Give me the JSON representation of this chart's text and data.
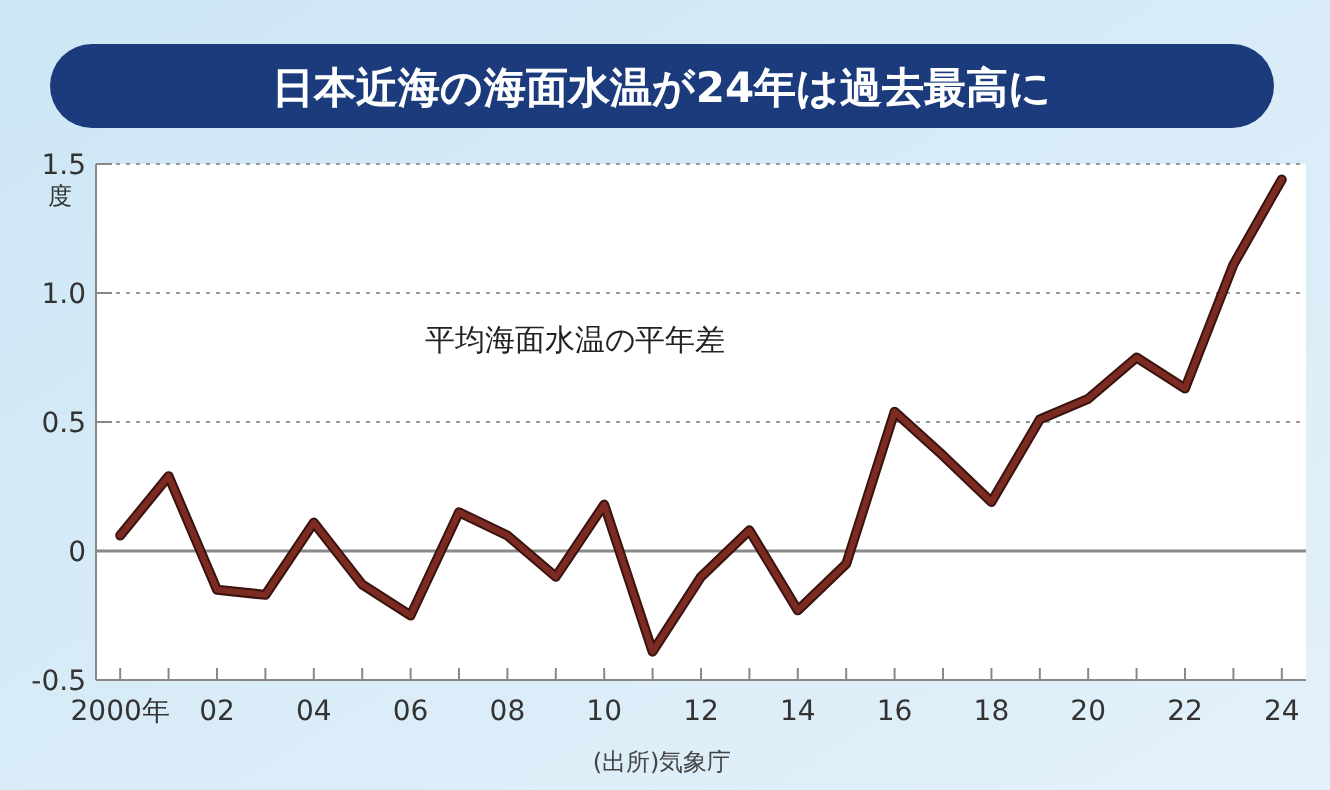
{
  "chart_data": {
    "type": "line",
    "title": "日本近海の海面水温が24年は過去最高に",
    "ylabel": "度",
    "annotations": [
      "(出所)気象庁"
    ],
    "x": [
      2000,
      2001,
      2002,
      2003,
      2004,
      2005,
      2006,
      2007,
      2008,
      2009,
      2010,
      2011,
      2012,
      2013,
      2014,
      2015,
      2016,
      2017,
      2018,
      2019,
      2020,
      2021,
      2022,
      2023,
      2024
    ],
    "series": [
      {
        "name": "平均海面水温の平年差",
        "color": "#7b2b22",
        "values": [
          0.06,
          0.29,
          -0.15,
          -0.17,
          0.11,
          -0.13,
          -0.25,
          0.15,
          0.06,
          -0.1,
          0.18,
          -0.39,
          -0.1,
          0.08,
          -0.23,
          -0.05,
          0.54,
          0.37,
          0.19,
          0.51,
          0.59,
          0.75,
          0.63,
          1.11,
          1.44
        ]
      }
    ],
    "xlim": [
      1999.5,
      2024.5
    ],
    "xticks": [
      {
        "value": 2000,
        "label": "2000年"
      },
      {
        "value": 2001,
        "label": null
      },
      {
        "value": 2002,
        "label": "02"
      },
      {
        "value": 2003,
        "label": null
      },
      {
        "value": 2004,
        "label": "04"
      },
      {
        "value": 2005,
        "label": null
      },
      {
        "value": 2006,
        "label": "06"
      },
      {
        "value": 2007,
        "label": null
      },
      {
        "value": 2008,
        "label": "08"
      },
      {
        "value": 2009,
        "label": null
      },
      {
        "value": 2010,
        "label": "10"
      },
      {
        "value": 2011,
        "label": null
      },
      {
        "value": 2012,
        "label": "12"
      },
      {
        "value": 2013,
        "label": null
      },
      {
        "value": 2014,
        "label": "14"
      },
      {
        "value": 2015,
        "label": null
      },
      {
        "value": 2016,
        "label": "16"
      },
      {
        "value": 2017,
        "label": null
      },
      {
        "value": 2018,
        "label": "18"
      },
      {
        "value": 2019,
        "label": null
      },
      {
        "value": 2020,
        "label": "20"
      },
      {
        "value": 2021,
        "label": null
      },
      {
        "value": 2022,
        "label": "22"
      },
      {
        "value": 2023,
        "label": null
      },
      {
        "value": 2024,
        "label": "24"
      }
    ],
    "ylim": [
      -0.5,
      1.5
    ],
    "yticks": [
      {
        "value": -0.5,
        "label": "-0.5"
      },
      {
        "value": 0,
        "label": "0"
      },
      {
        "value": 0.5,
        "label": "0.5"
      },
      {
        "value": 1,
        "label": "1.0"
      },
      {
        "value": 1.5,
        "label": "1.5"
      }
    ],
    "grid": "y",
    "line_style": "solid",
    "marker": "none",
    "ref_lines": [
      {
        "axis": "y",
        "value": 0,
        "color": "#8a8a8a",
        "line_style": "solid"
      }
    ]
  }
}
